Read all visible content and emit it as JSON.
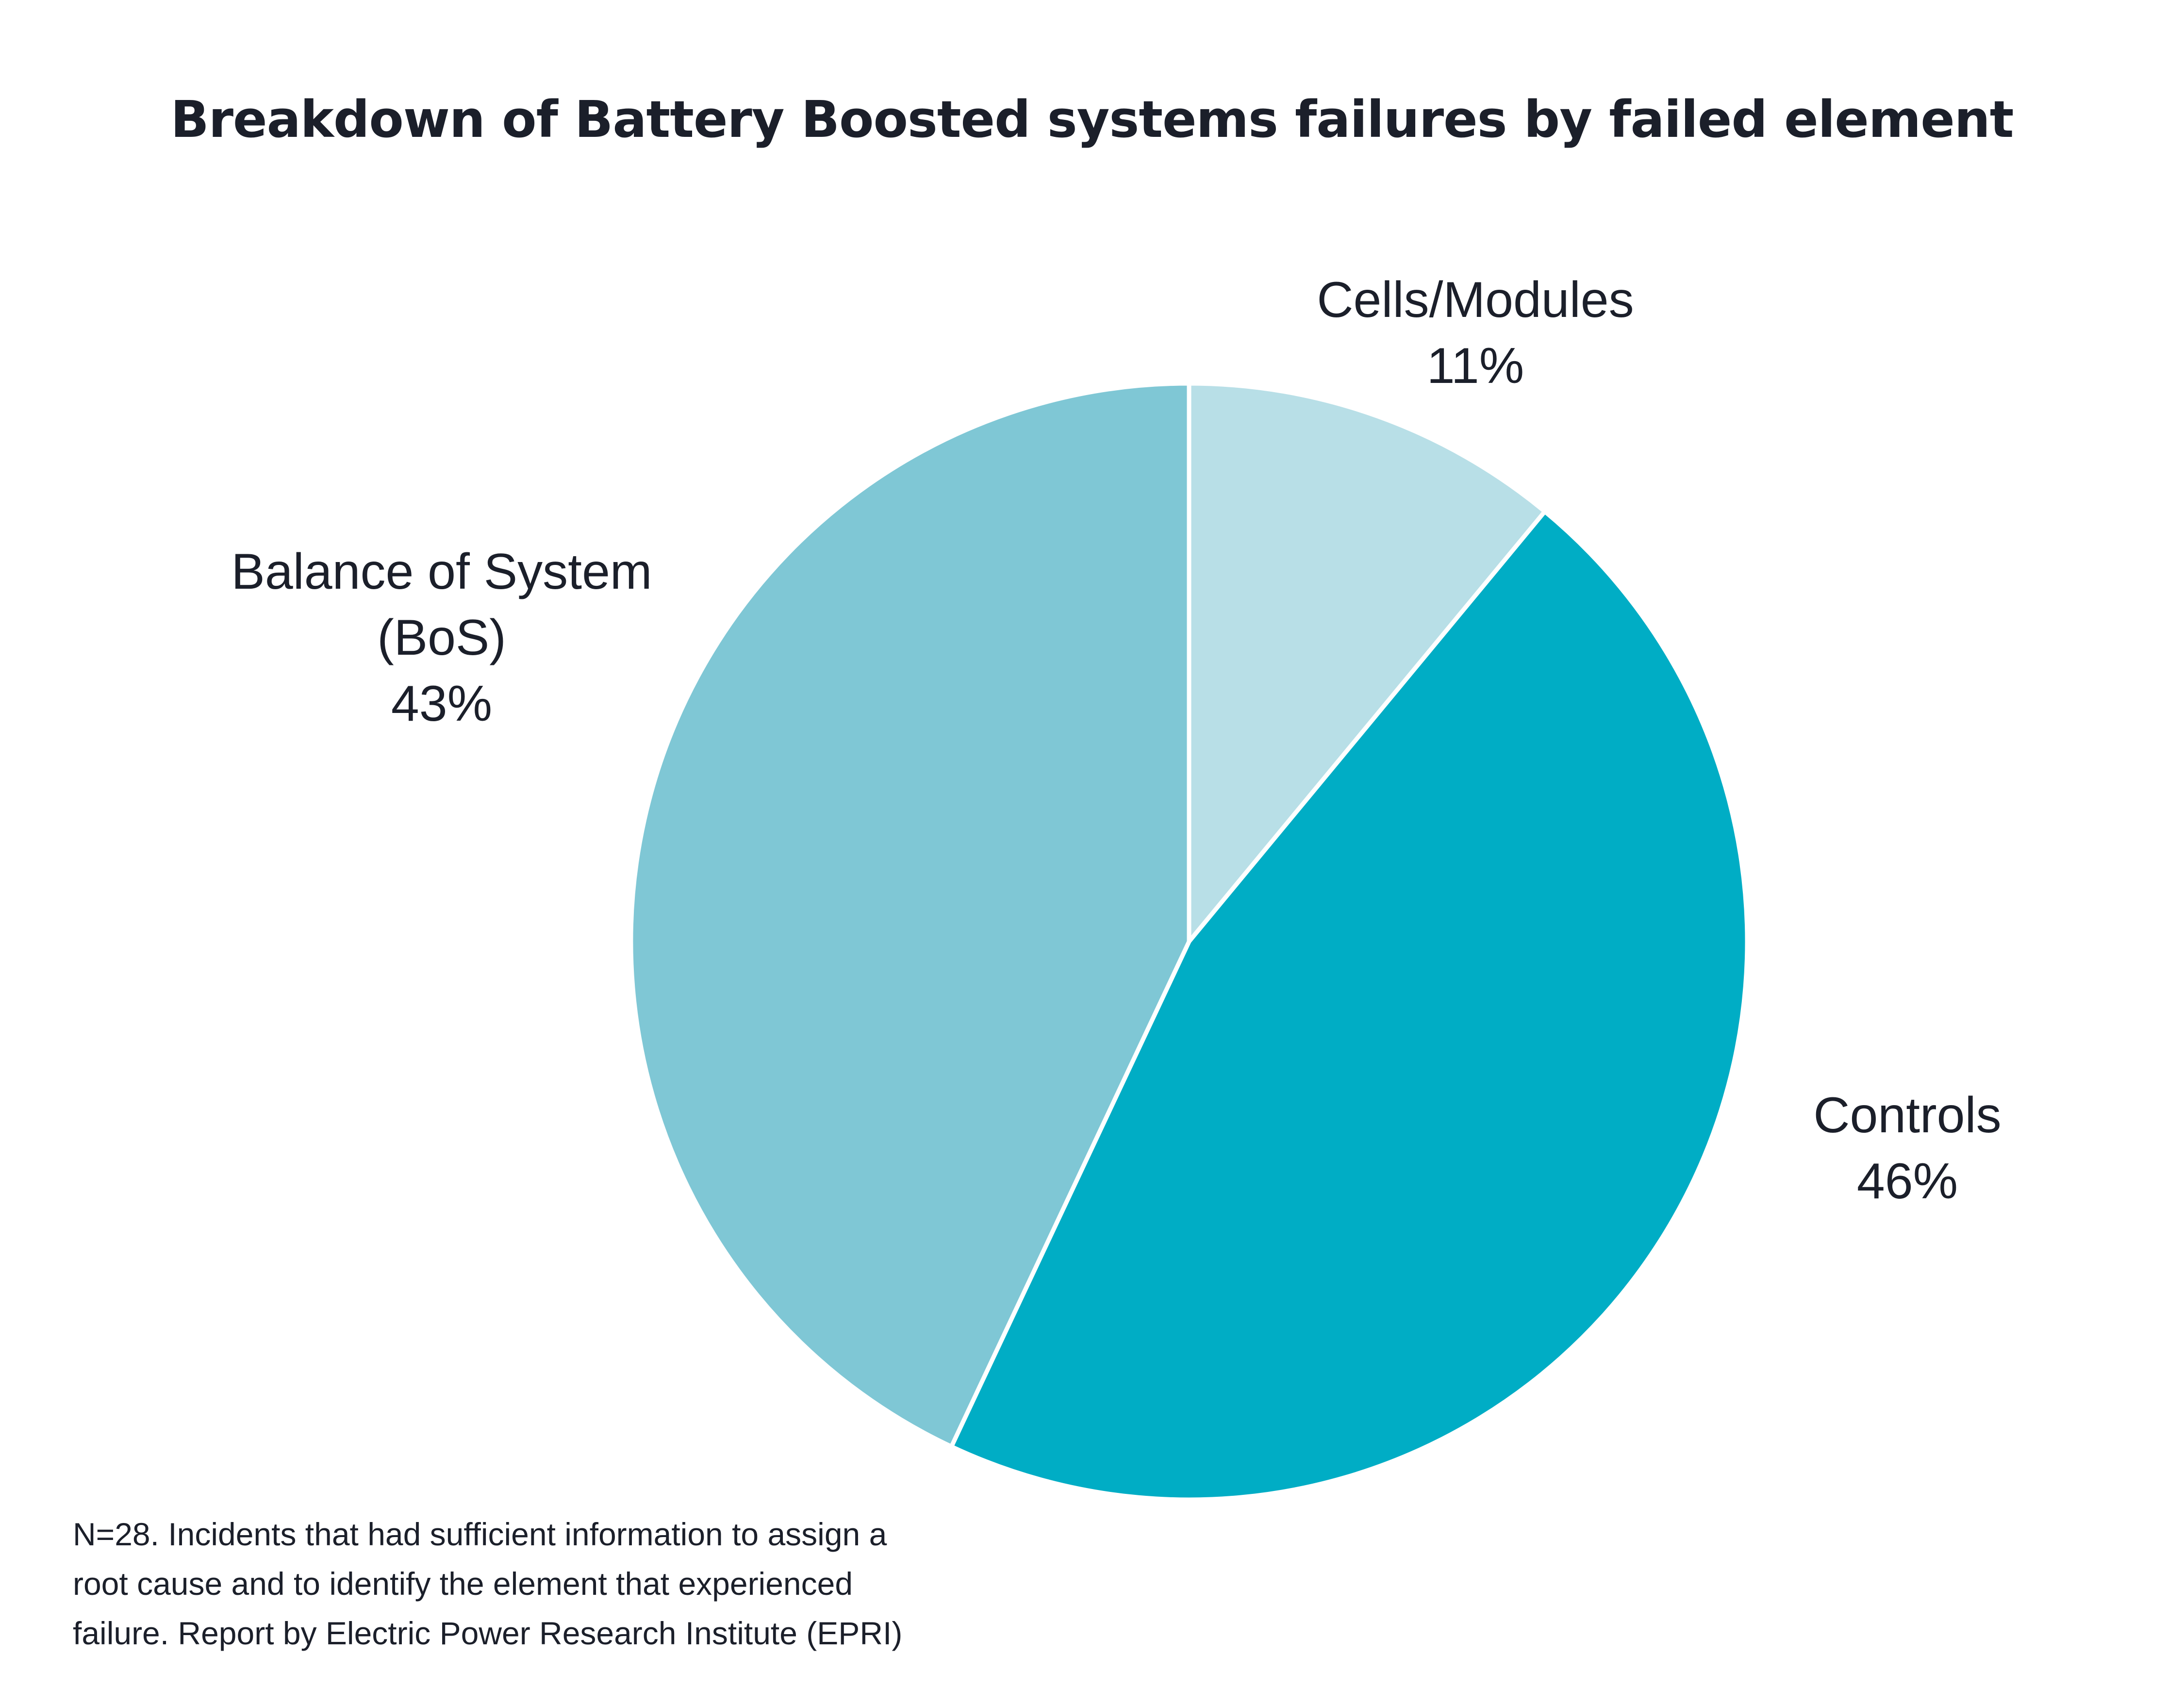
{
  "chart_data": {
    "type": "pie",
    "title": "Breakdown of Battery Boosted systems failures by failed element",
    "slices": [
      {
        "name": "Cells/Modules",
        "label_lines": [
          "Cells/Modules"
        ],
        "value": 11,
        "value_label": "11%",
        "color": "#b8dfe7"
      },
      {
        "name": "Controls",
        "label_lines": [
          "Controls"
        ],
        "value": 46,
        "value_label": "46%",
        "color": "#00adc5"
      },
      {
        "name": "Balance of System (BoS)",
        "label_lines": [
          "Balance of System",
          "(BoS)"
        ],
        "value": 43,
        "value_label": "43%",
        "color": "#7fc7d5"
      }
    ],
    "start_angle_deg": 0,
    "direction": "clockwise",
    "separator_color": "#ffffff"
  },
  "footnote": {
    "lines": [
      "N=28. Incidents that had sufficient information to assign a",
      "root cause and to identify the element that experienced",
      "failure. Report by Electric Power Research Institute (EPRI)"
    ]
  }
}
